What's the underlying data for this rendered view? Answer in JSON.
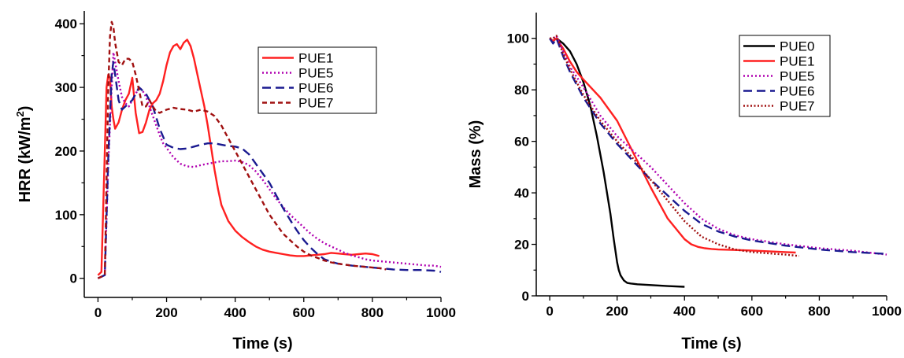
{
  "chart_data": [
    {
      "type": "line",
      "title": "",
      "xlabel": "Time (s)",
      "ylabel": "HRR (kW/m",
      "ylabel_superscript": "2",
      "ylabel_suffix": ")",
      "xlim": [
        -40,
        1000
      ],
      "ylim": [
        -30,
        420
      ],
      "xticks": [
        0,
        200,
        400,
        600,
        800,
        1000
      ],
      "xtick_labels": [
        "0",
        "200",
        "400",
        "600",
        "800",
        "1000"
      ],
      "yticks": [
        0,
        100,
        200,
        300,
        400
      ],
      "ytick_labels": [
        "0",
        "100",
        "200",
        "300",
        "400"
      ],
      "grid": false,
      "legend": "top-right",
      "series": [
        {
          "name": "PUE1",
          "color": "#ff2020",
          "dash": "solid",
          "x": [
            0,
            10,
            20,
            25,
            30,
            35,
            40,
            45,
            50,
            60,
            70,
            80,
            90,
            100,
            110,
            120,
            130,
            140,
            150,
            160,
            170,
            180,
            190,
            200,
            210,
            220,
            230,
            240,
            250,
            260,
            270,
            280,
            290,
            300,
            310,
            320,
            330,
            340,
            350,
            360,
            380,
            400,
            420,
            440,
            460,
            480,
            500,
            520,
            540,
            560,
            580,
            600,
            620,
            640,
            660,
            680,
            700,
            720,
            740,
            760,
            780,
            800,
            820
          ],
          "y": [
            5,
            10,
            200,
            300,
            320,
            315,
            270,
            250,
            235,
            245,
            265,
            280,
            290,
            315,
            260,
            228,
            230,
            245,
            265,
            275,
            280,
            290,
            310,
            335,
            355,
            365,
            368,
            360,
            370,
            375,
            365,
            345,
            320,
            295,
            270,
            240,
            205,
            170,
            140,
            115,
            90,
            75,
            65,
            57,
            50,
            45,
            42,
            40,
            38,
            36,
            35,
            35,
            36,
            37,
            38,
            40,
            39,
            38,
            37,
            38,
            39,
            38,
            35
          ]
        },
        {
          "name": "PUE5",
          "color": "#b000b0",
          "dash": "dot",
          "x": [
            0,
            20,
            30,
            40,
            45,
            50,
            60,
            70,
            80,
            90,
            100,
            110,
            120,
            130,
            140,
            150,
            160,
            170,
            180,
            190,
            200,
            220,
            240,
            260,
            280,
            300,
            320,
            340,
            360,
            380,
            400,
            420,
            440,
            460,
            480,
            500,
            520,
            540,
            560,
            580,
            600,
            620,
            640,
            660,
            680,
            700,
            720,
            740,
            760,
            780,
            800,
            820,
            840,
            860,
            880,
            900,
            920,
            940,
            960,
            980,
            1000
          ],
          "y": [
            0,
            5,
            180,
            300,
            355,
            340,
            310,
            285,
            275,
            270,
            280,
            290,
            300,
            295,
            285,
            270,
            255,
            240,
            225,
            212,
            205,
            190,
            180,
            176,
            175,
            178,
            180,
            182,
            184,
            184,
            185,
            183,
            178,
            168,
            155,
            140,
            125,
            112,
            100,
            90,
            80,
            70,
            62,
            55,
            50,
            45,
            40,
            36,
            33,
            30,
            28,
            27,
            26,
            25,
            24,
            23,
            22,
            21,
            20,
            20,
            18
          ]
        },
        {
          "name": "PUE6",
          "color": "#1a1a90",
          "dash": "dash",
          "x": [
            0,
            20,
            30,
            40,
            45,
            50,
            60,
            70,
            80,
            90,
            100,
            120,
            140,
            160,
            180,
            200,
            220,
            240,
            260,
            280,
            300,
            320,
            340,
            360,
            380,
            400,
            420,
            440,
            460,
            480,
            500,
            520,
            540,
            560,
            580,
            600,
            620,
            640,
            660,
            680,
            700,
            740,
            780,
            820,
            860,
            900,
            940,
            980,
            1000
          ],
          "y": [
            0,
            5,
            190,
            320,
            340,
            320,
            280,
            265,
            270,
            275,
            280,
            300,
            290,
            270,
            235,
            210,
            205,
            203,
            204,
            207,
            210,
            212,
            212,
            210,
            208,
            207,
            204,
            195,
            180,
            165,
            150,
            130,
            110,
            92,
            75,
            60,
            48,
            38,
            30,
            26,
            23,
            20,
            18,
            16,
            14,
            13,
            13,
            12,
            10
          ]
        },
        {
          "name": "PUE7",
          "color": "#a01010",
          "dash": "short-dash",
          "x": [
            0,
            20,
            30,
            35,
            40,
            45,
            50,
            60,
            70,
            80,
            90,
            100,
            110,
            120,
            130,
            140,
            150,
            160,
            170,
            180,
            200,
            220,
            240,
            260,
            280,
            300,
            320,
            340,
            360,
            380,
            400,
            420,
            440,
            460,
            480,
            500,
            520,
            540,
            560,
            580,
            600,
            620,
            640,
            660,
            680,
            700,
            740,
            780,
            820,
            840
          ],
          "y": [
            0,
            5,
            300,
            380,
            403,
            395,
            370,
            340,
            335,
            345,
            345,
            340,
            320,
            295,
            270,
            270,
            280,
            270,
            262,
            260,
            265,
            268,
            266,
            265,
            262,
            265,
            262,
            255,
            240,
            220,
            200,
            180,
            160,
            140,
            120,
            100,
            85,
            70,
            60,
            50,
            42,
            36,
            32,
            28,
            25,
            23,
            20,
            18,
            16,
            14
          ]
        }
      ]
    },
    {
      "type": "line",
      "title": "",
      "xlabel": "Time (s)",
      "ylabel": "Mass (%)",
      "xlim": [
        -40,
        1000
      ],
      "ylim": [
        0,
        110
      ],
      "xticks": [
        0,
        200,
        400,
        600,
        800,
        1000
      ],
      "xtick_labels": [
        "0",
        "200",
        "400",
        "600",
        "800",
        "1000"
      ],
      "yticks": [
        0,
        20,
        40,
        60,
        80,
        100
      ],
      "ytick_labels": [
        "0",
        "20",
        "40",
        "60",
        "80",
        "100"
      ],
      "grid": false,
      "legend": "top-right",
      "series": [
        {
          "name": "PUE0",
          "color": "#000000",
          "dash": "solid",
          "x": [
            0,
            10,
            20,
            40,
            60,
            80,
            100,
            120,
            140,
            160,
            180,
            190,
            200,
            205,
            210,
            215,
            220,
            230,
            240,
            260,
            300,
            350,
            400
          ],
          "y": [
            100,
            99,
            100,
            98,
            95,
            90,
            83,
            74,
            62,
            48,
            32,
            22,
            13,
            10,
            8,
            7,
            6,
            5,
            4.8,
            4.5,
            4.2,
            3.8,
            3.5
          ]
        },
        {
          "name": "PUE1",
          "color": "#ff2020",
          "dash": "solid",
          "x": [
            0,
            10,
            20,
            40,
            60,
            80,
            100,
            150,
            200,
            250,
            300,
            350,
            400,
            420,
            440,
            460,
            480,
            500,
            550,
            600,
            650,
            700,
            730
          ],
          "y": [
            100,
            99,
            100,
            96,
            91,
            87,
            84,
            77,
            68,
            55,
            42,
            30,
            22,
            20,
            19,
            18.5,
            18.2,
            18,
            17.8,
            17.6,
            17.3,
            17,
            16.8
          ]
        },
        {
          "name": "PUE5",
          "color": "#b000b0",
          "dash": "dot",
          "x": [
            0,
            10,
            20,
            40,
            60,
            80,
            100,
            150,
            200,
            250,
            300,
            350,
            400,
            450,
            500,
            550,
            600,
            650,
            700,
            800,
            900,
            1000
          ],
          "y": [
            100,
            100,
            101,
            95,
            89,
            85,
            81,
            70,
            62,
            56,
            50,
            43,
            36,
            30,
            26,
            23.5,
            22,
            21,
            20,
            18.5,
            17.5,
            16
          ]
        },
        {
          "name": "PUE6",
          "color": "#1a1a90",
          "dash": "dash",
          "x": [
            0,
            10,
            20,
            40,
            60,
            80,
            100,
            150,
            200,
            250,
            300,
            350,
            400,
            450,
            500,
            550,
            600,
            650,
            700,
            800,
            900,
            1000
          ],
          "y": [
            100,
            98,
            100,
            93,
            87,
            82,
            77,
            67,
            59,
            52,
            45,
            39,
            33,
            28,
            25,
            23,
            21.5,
            20.5,
            19.5,
            18,
            17,
            16.3
          ]
        },
        {
          "name": "PUE7",
          "color": "#a01010",
          "dash": "short-dot",
          "x": [
            0,
            10,
            20,
            40,
            60,
            80,
            100,
            150,
            200,
            250,
            300,
            350,
            400,
            450,
            500,
            550,
            600,
            650,
            700,
            740
          ],
          "y": [
            100,
            100,
            101,
            94,
            88,
            83,
            78,
            68,
            60,
            53,
            45,
            37,
            29,
            23,
            20,
            18,
            17,
            16.5,
            16,
            15.5
          ]
        }
      ]
    }
  ]
}
